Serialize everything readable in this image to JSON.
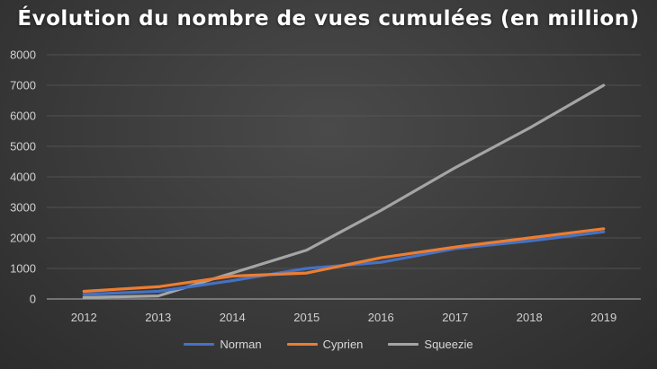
{
  "chart_data": {
    "type": "line",
    "title": "Évolution du nombre de vues cumulées (en million)",
    "x": [
      "2012",
      "2013",
      "2014",
      "2015",
      "2016",
      "2017",
      "2018",
      "2019"
    ],
    "ylim": [
      0,
      8000
    ],
    "yticks": [
      "0",
      "1000",
      "2000",
      "3000",
      "4000",
      "5000",
      "6000",
      "7000",
      "8000"
    ],
    "grid": true,
    "legend_position": "bottom",
    "series": [
      {
        "name": "Norman",
        "color": "#4472c4",
        "values": [
          150,
          250,
          600,
          1000,
          1200,
          1650,
          1900,
          2200
        ]
      },
      {
        "name": "Cyprien",
        "color": "#ed7d31",
        "values": [
          250,
          400,
          750,
          850,
          1350,
          1700,
          2000,
          2300
        ]
      },
      {
        "name": "Squeezie",
        "color": "#a5a5a5",
        "values": [
          50,
          100,
          850,
          1600,
          2900,
          4300,
          5600,
          7000
        ]
      }
    ]
  }
}
